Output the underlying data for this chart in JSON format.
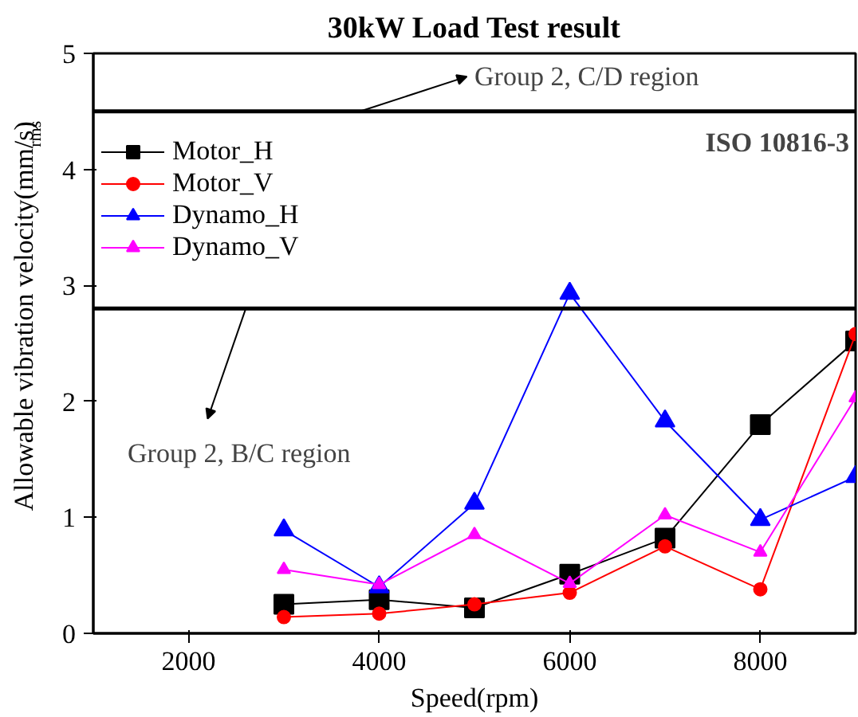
{
  "chart_data": {
    "type": "line",
    "title": "30kW Load Test result",
    "xlabel": "Speed(rpm)",
    "ylabel": "Allowable vibration velocity(mm/s)$_{rms}$",
    "x": [
      3000,
      4000,
      5000,
      6000,
      7000,
      8000,
      9000
    ],
    "series": [
      {
        "name": "Motor_H",
        "color": "#000000",
        "marker": "square",
        "values": [
          0.25,
          0.29,
          0.22,
          0.51,
          0.82,
          1.8,
          2.52
        ]
      },
      {
        "name": "Motor_V",
        "color": "#ff0000",
        "marker": "circle",
        "values": [
          0.14,
          0.17,
          0.25,
          0.35,
          0.75,
          0.38,
          2.58
        ]
      },
      {
        "name": "Dynamo_H",
        "color": "#0000ff",
        "marker": "triangle",
        "values": [
          0.89,
          0.4,
          1.12,
          2.93,
          1.83,
          0.98,
          1.35
        ]
      },
      {
        "name": "Dynamo_V",
        "color": "#ff00ff",
        "marker": "triangle",
        "values": [
          0.55,
          0.42,
          0.85,
          0.43,
          1.02,
          0.7,
          2.03
        ]
      }
    ],
    "xlim": [
      1000,
      9000
    ],
    "ylim": [
      0,
      5
    ],
    "xticks": [
      2000,
      4000,
      6000,
      8000
    ],
    "yticks": [
      0,
      1,
      2,
      3,
      4,
      5
    ],
    "ref_lines": [
      {
        "axis": "y",
        "value": 4.5,
        "label": "Group 2, C/D region",
        "color": "#000000"
      },
      {
        "axis": "y",
        "value": 2.8,
        "label": "Group 2, B/C region",
        "color": "#000000"
      }
    ],
    "annotations": [
      "ISO 10816-3"
    ],
    "legend": "top left",
    "grid": false
  }
}
